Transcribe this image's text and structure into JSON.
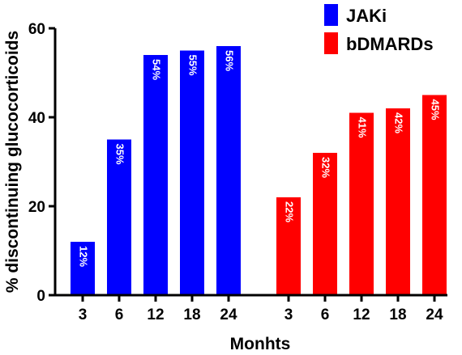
{
  "chart_data": {
    "type": "bar",
    "title": "",
    "xlabel": "Monhts",
    "ylabel": "% discontinuing glucocorticoids",
    "ylim": [
      0,
      60
    ],
    "yticks": [
      0,
      20,
      40,
      60
    ],
    "legend_position": "top-right",
    "series": [
      {
        "name": "JAKi",
        "color": "#0000ff",
        "categories": [
          "3",
          "6",
          "12",
          "18",
          "24"
        ],
        "values": [
          12,
          35,
          54,
          55,
          56
        ],
        "labels": [
          "12%",
          "35%",
          "54%",
          "55%",
          "56%"
        ]
      },
      {
        "name": "bDMARDs",
        "color": "#ff0000",
        "categories": [
          "3",
          "6",
          "12",
          "18",
          "24"
        ],
        "values": [
          22,
          32,
          41,
          42,
          45
        ],
        "labels": [
          "22%",
          "32%",
          "41%",
          "42%",
          "45%"
        ]
      }
    ]
  }
}
